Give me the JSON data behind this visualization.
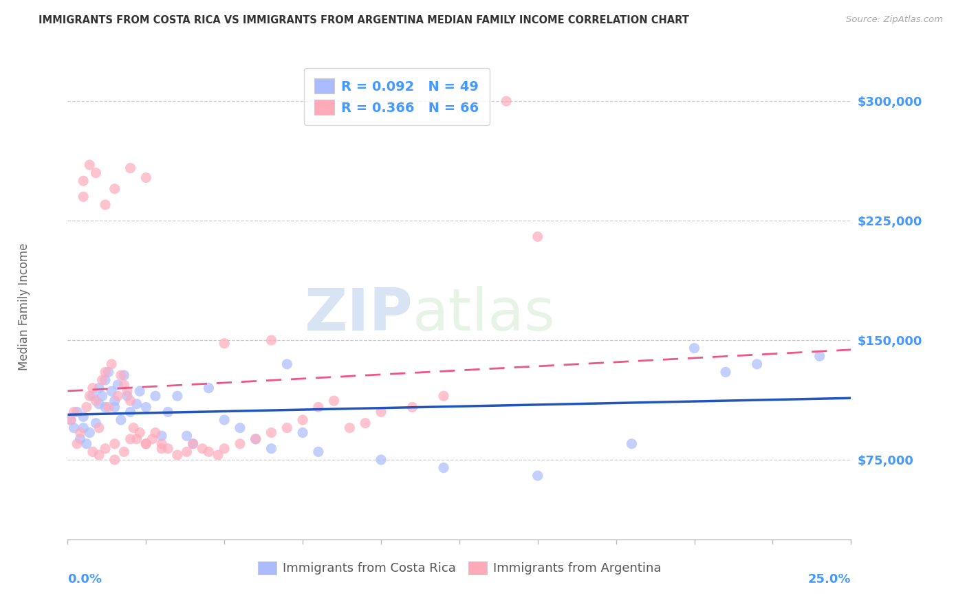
{
  "title": "IMMIGRANTS FROM COSTA RICA VS IMMIGRANTS FROM ARGENTINA MEDIAN FAMILY INCOME CORRELATION CHART",
  "source": "Source: ZipAtlas.com",
  "ylabel": "Median Family Income",
  "watermark_zip": "ZIP",
  "watermark_atlas": "atlas",
  "xlim": [
    0.0,
    0.25
  ],
  "ylim": [
    25000,
    325000
  ],
  "yticks": [
    75000,
    150000,
    225000,
    300000
  ],
  "ytick_labels": [
    "$75,000",
    "$150,000",
    "$225,000",
    "$300,000"
  ],
  "xtick_positions": [
    0.0,
    0.025,
    0.05,
    0.075,
    0.1,
    0.125,
    0.15,
    0.175,
    0.2,
    0.225,
    0.25
  ],
  "series1_label": "Immigrants from Costa Rica",
  "series1_R": "0.092",
  "series1_N": "49",
  "series1_color": "#aabbff",
  "series1_trend_color": "#2255bb",
  "series2_label": "Immigrants from Argentina",
  "series2_R": "0.366",
  "series2_N": "66",
  "series2_color": "#ffaabb",
  "series2_trend_color": "#ee5588",
  "axis_label_color": "#4499ff",
  "grid_color": "#cccccc",
  "background_color": "#ffffff",
  "costa_rica_x": [
    0.001,
    0.002,
    0.003,
    0.004,
    0.005,
    0.005,
    0.006,
    0.007,
    0.008,
    0.009,
    0.01,
    0.01,
    0.011,
    0.012,
    0.012,
    0.013,
    0.014,
    0.015,
    0.015,
    0.016,
    0.017,
    0.018,
    0.019,
    0.02,
    0.022,
    0.023,
    0.025,
    0.028,
    0.03,
    0.032,
    0.035,
    0.038,
    0.04,
    0.045,
    0.05,
    0.055,
    0.06,
    0.065,
    0.07,
    0.075,
    0.08,
    0.1,
    0.12,
    0.15,
    0.18,
    0.2,
    0.21,
    0.22,
    0.24
  ],
  "costa_rica_y": [
    100000,
    95000,
    105000,
    88000,
    102000,
    95000,
    85000,
    92000,
    115000,
    98000,
    110000,
    120000,
    115000,
    108000,
    125000,
    130000,
    118000,
    112000,
    108000,
    122000,
    100000,
    128000,
    115000,
    105000,
    110000,
    118000,
    108000,
    115000,
    90000,
    105000,
    115000,
    90000,
    85000,
    120000,
    100000,
    95000,
    88000,
    82000,
    135000,
    92000,
    80000,
    75000,
    70000,
    65000,
    85000,
    145000,
    130000,
    135000,
    140000
  ],
  "argentina_x": [
    0.001,
    0.002,
    0.003,
    0.004,
    0.005,
    0.006,
    0.007,
    0.008,
    0.009,
    0.01,
    0.011,
    0.012,
    0.013,
    0.014,
    0.015,
    0.016,
    0.017,
    0.018,
    0.019,
    0.02,
    0.021,
    0.022,
    0.023,
    0.025,
    0.027,
    0.028,
    0.03,
    0.032,
    0.035,
    0.038,
    0.04,
    0.043,
    0.045,
    0.048,
    0.05,
    0.055,
    0.06,
    0.065,
    0.07,
    0.075,
    0.08,
    0.085,
    0.09,
    0.095,
    0.1,
    0.11,
    0.12,
    0.008,
    0.01,
    0.012,
    0.015,
    0.018,
    0.02,
    0.025,
    0.03,
    0.005,
    0.007,
    0.009,
    0.012,
    0.015,
    0.02,
    0.025,
    0.065,
    0.14,
    0.15,
    0.05
  ],
  "argentina_y": [
    100000,
    105000,
    85000,
    92000,
    250000,
    108000,
    115000,
    120000,
    112000,
    95000,
    125000,
    130000,
    108000,
    135000,
    85000,
    115000,
    128000,
    122000,
    118000,
    112000,
    95000,
    88000,
    92000,
    85000,
    88000,
    92000,
    85000,
    82000,
    78000,
    80000,
    85000,
    82000,
    80000,
    78000,
    82000,
    85000,
    88000,
    92000,
    95000,
    100000,
    108000,
    112000,
    95000,
    98000,
    105000,
    108000,
    115000,
    80000,
    78000,
    82000,
    75000,
    80000,
    88000,
    85000,
    82000,
    240000,
    260000,
    255000,
    235000,
    245000,
    258000,
    252000,
    150000,
    300000,
    215000,
    148000
  ]
}
